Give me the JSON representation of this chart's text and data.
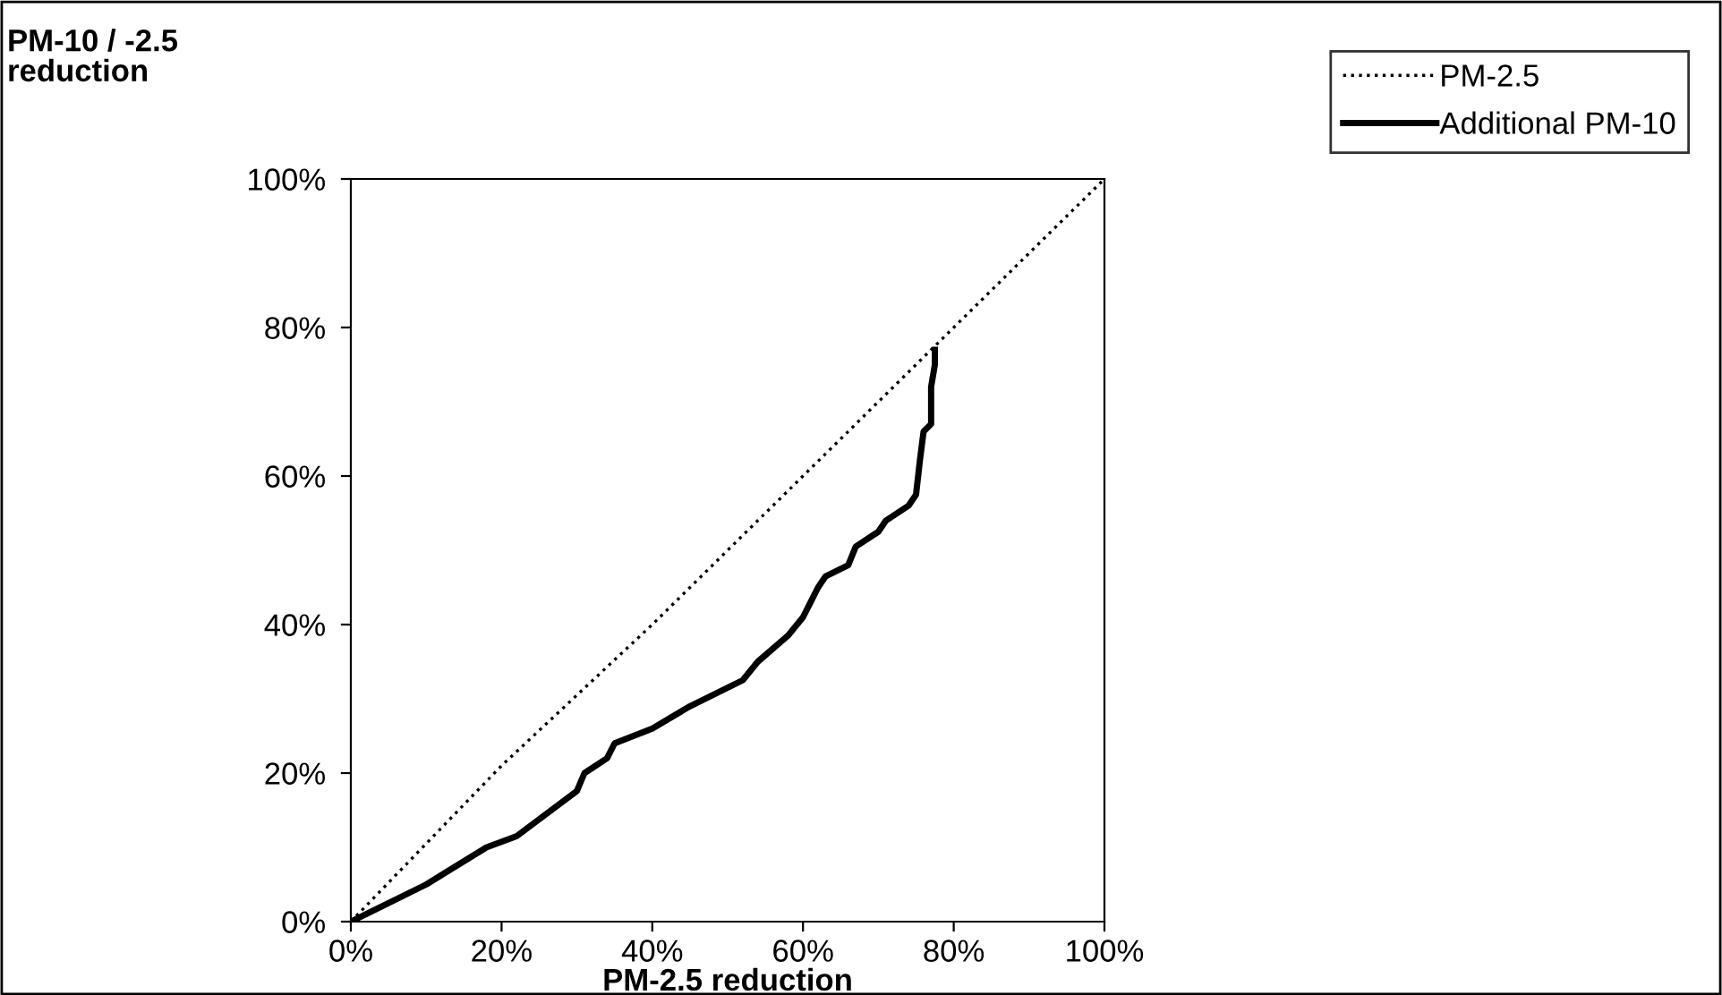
{
  "chart_data": {
    "type": "line",
    "xlabel": "PM-2.5 reduction",
    "ylabel": "PM-10 / -2.5\nreduction",
    "xlim": [
      0,
      100
    ],
    "ylim": [
      0,
      100
    ],
    "xticks": [
      {
        "value": 0,
        "label": "0%"
      },
      {
        "value": 20,
        "label": "20%"
      },
      {
        "value": 40,
        "label": "40%"
      },
      {
        "value": 60,
        "label": "60%"
      },
      {
        "value": 80,
        "label": "80%"
      },
      {
        "value": 100,
        "label": "100%"
      }
    ],
    "yticks": [
      {
        "value": 0,
        "label": "0%"
      },
      {
        "value": 20,
        "label": "20%"
      },
      {
        "value": 40,
        "label": "40%"
      },
      {
        "value": 60,
        "label": "60%"
      },
      {
        "value": 80,
        "label": "80%"
      },
      {
        "value": 100,
        "label": "100%"
      }
    ],
    "grid": false,
    "legend": "top right",
    "marker": "none",
    "series": [
      {
        "name": "PM-2.5",
        "color": "#000000",
        "line_style": "dotted",
        "x": [
          0,
          20,
          40,
          60,
          78,
          100
        ],
        "values": [
          0,
          21,
          40,
          60,
          78,
          100
        ]
      },
      {
        "name": "Additional PM-10",
        "color": "#000000",
        "line_style": "solid",
        "x": [
          0,
          10,
          18,
          22,
          30,
          31,
          34,
          35,
          40,
          45,
          52,
          54,
          58,
          60,
          61,
          62,
          63,
          66,
          67,
          70,
          71,
          74,
          75,
          75.5,
          76,
          77,
          77,
          77.5,
          77.5
        ],
        "values": [
          0,
          5,
          10,
          11.5,
          17.6,
          20,
          22,
          24,
          26,
          29,
          32.5,
          35,
          38.5,
          41,
          43,
          45,
          46.5,
          48,
          50.5,
          52.5,
          54,
          56,
          57.5,
          62,
          66,
          67,
          72,
          75,
          77
        ]
      }
    ]
  }
}
